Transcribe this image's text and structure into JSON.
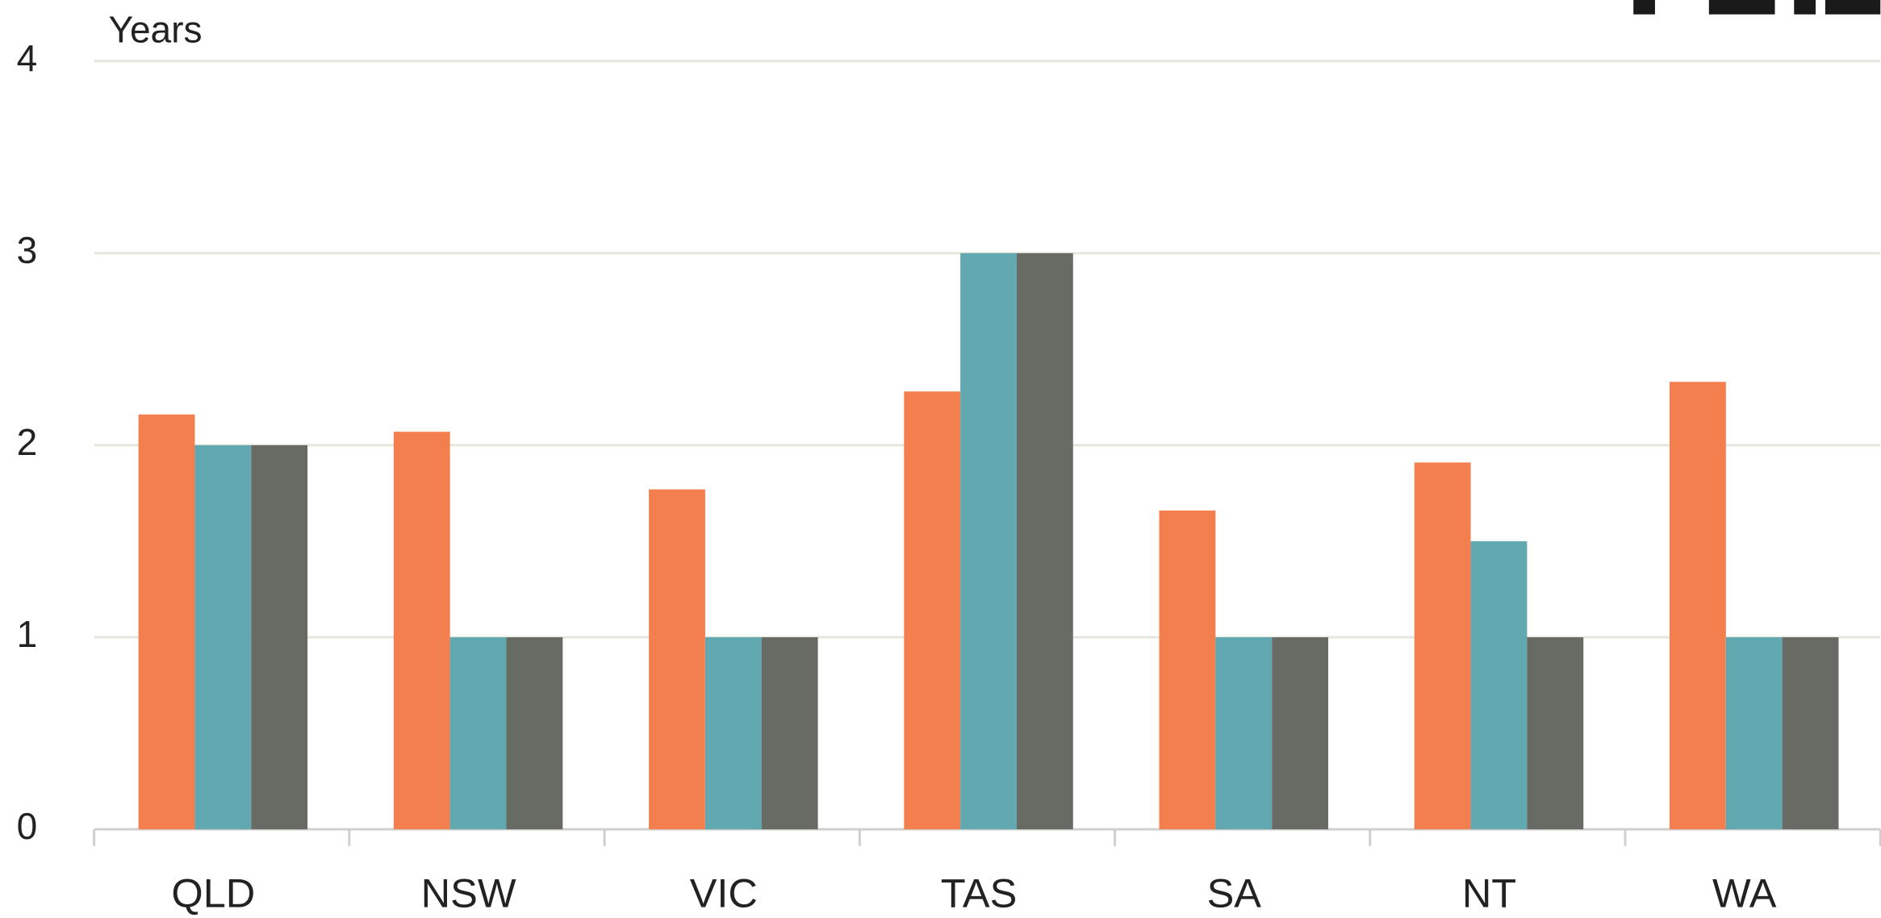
{
  "chart_data": {
    "type": "bar",
    "y_label": "Years",
    "categories": [
      "QLD",
      "NSW",
      "VIC",
      "TAS",
      "SA",
      "NT",
      "WA"
    ],
    "series": [
      {
        "color": "#f47f4e",
        "values": [
          2.16,
          2.07,
          1.77,
          2.28,
          1.66,
          1.91,
          2.33
        ]
      },
      {
        "color": "#62a8b1",
        "values": [
          2,
          1,
          1,
          3,
          1,
          1.5,
          1
        ]
      },
      {
        "color": "#676b63",
        "values": [
          2,
          1,
          1,
          3,
          1,
          1,
          1
        ]
      }
    ],
    "ylim": [
      0,
      4
    ],
    "yticks": [
      0,
      1,
      2,
      3,
      4
    ],
    "grid": true
  }
}
